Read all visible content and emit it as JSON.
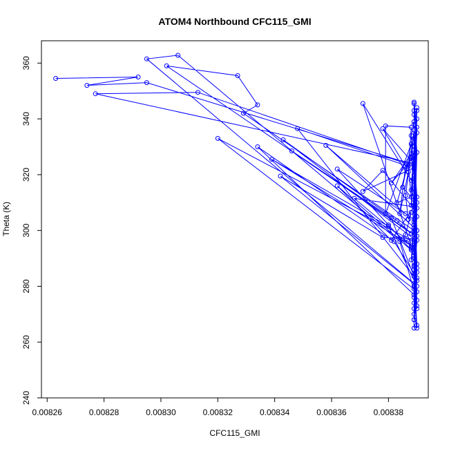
{
  "chart_data": {
    "type": "scatter",
    "title": "ATOM4 Northbound CFC115_GMI",
    "xlabel": "CFC115_GMI",
    "ylabel": "Theta (K)",
    "xlim": [
      0.008258,
      0.008394
    ],
    "ylim": [
      240,
      368
    ],
    "xticks": [
      0.00826,
      0.00828,
      0.0083,
      0.00832,
      0.00834,
      0.00836,
      0.00838
    ],
    "xtick_labels": [
      "0.00826",
      "0.00828",
      "0.00830",
      "0.00832",
      "0.00834",
      "0.00836",
      "0.00838"
    ],
    "yticks": [
      240,
      260,
      280,
      300,
      320,
      340,
      360
    ],
    "ytick_labels": [
      "240",
      "260",
      "280",
      "300",
      "320",
      "340",
      "360"
    ],
    "grid": false,
    "series": [
      {
        "color": "#0000ff",
        "connected": true,
        "marker": "open-circle",
        "points": [
          [
            0.008263,
            354.5
          ],
          [
            0.008292,
            355.0
          ],
          [
            0.008274,
            352.0
          ],
          [
            0.008295,
            353.0
          ],
          [
            0.008389,
            323.5
          ],
          [
            0.00839,
            310.0
          ],
          [
            0.008389,
            296.0
          ],
          [
            0.00839,
            282.0
          ],
          [
            0.008389,
            270.0
          ],
          [
            0.00839,
            265.0
          ],
          [
            0.008389,
            280.0
          ],
          [
            0.00839,
            300.0
          ],
          [
            0.008389,
            325.0
          ],
          [
            0.00839,
            344.0
          ],
          [
            0.008389,
            330.0
          ],
          [
            0.00839,
            312.0
          ],
          [
            0.008389,
            295.0
          ],
          [
            0.00839,
            278.0
          ],
          [
            0.008389,
            268.0
          ],
          [
            0.00839,
            288.0
          ],
          [
            0.008389,
            318.0
          ],
          [
            0.00839,
            340.0
          ],
          [
            0.008389,
            322.0
          ],
          [
            0.00839,
            305.0
          ],
          [
            0.008389,
            286.0
          ],
          [
            0.00839,
            273.0
          ],
          [
            0.008389,
            292.0
          ],
          [
            0.00839,
            328.0
          ],
          [
            0.008389,
            346.0
          ],
          [
            0.00839,
            335.0
          ],
          [
            0.008389,
            315.0
          ],
          [
            0.00839,
            298.0
          ],
          [
            0.008389,
            276.0
          ],
          [
            0.00839,
            266.0
          ],
          [
            0.008389,
            284.0
          ],
          [
            0.00839,
            308.0
          ],
          [
            0.008389,
            326.0
          ],
          [
            0.00839,
            343.0
          ],
          [
            0.008389,
            320.0
          ],
          [
            0.00839,
            300.0
          ],
          [
            0.008389,
            290.0
          ],
          [
            0.00839,
            272.0
          ],
          [
            0.008389,
            302.0
          ],
          [
            0.00839,
            337.0
          ],
          [
            0.008389,
            324.0
          ],
          [
            0.008277,
            349.0
          ],
          [
            0.008313,
            349.5
          ],
          [
            0.008389,
            323.0
          ],
          [
            0.00839,
            296.5
          ],
          [
            0.008389,
            281.0
          ],
          [
            0.008295,
            361.5
          ],
          [
            0.008306,
            362.8
          ],
          [
            0.008384,
            296.0
          ],
          [
            0.00839,
            275.0
          ],
          [
            0.008389,
            298.5
          ],
          [
            0.008302,
            359.0
          ],
          [
            0.008327,
            355.5
          ],
          [
            0.008334,
            345.0
          ],
          [
            0.008329,
            342.0
          ],
          [
            0.008389,
            300.0
          ],
          [
            0.00839,
            285.0
          ],
          [
            0.008389,
            279.0
          ],
          [
            0.00832,
            333.0
          ],
          [
            0.008389,
            296.0
          ],
          [
            0.00839,
            286.5
          ],
          [
            0.008389,
            277.0
          ],
          [
            0.008334,
            330.0
          ],
          [
            0.008382,
            296.0
          ],
          [
            0.00839,
            283.0
          ],
          [
            0.008389,
            294.0
          ],
          [
            0.008339,
            325.5
          ],
          [
            0.00838,
            301.5
          ],
          [
            0.00839,
            280.0
          ],
          [
            0.008342,
            319.5
          ],
          [
            0.008378,
            297.5
          ],
          [
            0.008389,
            297.0
          ],
          [
            0.008343,
            332.5
          ],
          [
            0.008383,
            303.5
          ],
          [
            0.008388,
            299.0
          ],
          [
            0.008346,
            328.5
          ],
          [
            0.008381,
            304.5
          ],
          [
            0.008389,
            283.5
          ],
          [
            0.008348,
            336.5
          ],
          [
            0.008387,
            323.0
          ],
          [
            0.008389,
            301.0
          ],
          [
            0.008358,
            330.5
          ],
          [
            0.008386,
            306.0
          ],
          [
            0.008389,
            304.0
          ],
          [
            0.008362,
            322.0
          ],
          [
            0.00838,
            302.0
          ],
          [
            0.008388,
            293.0
          ],
          [
            0.008362,
            316.0
          ],
          [
            0.008381,
            296.5
          ],
          [
            0.008389,
            308.5
          ],
          [
            0.008368,
            311.5
          ],
          [
            0.008388,
            294.5
          ],
          [
            0.008371,
            345.5
          ],
          [
            0.008388,
            318.0
          ],
          [
            0.008389,
            322.5
          ],
          [
            0.008371,
            314.0
          ],
          [
            0.008378,
            321.5
          ],
          [
            0.008388,
            309.0
          ],
          [
            0.008389,
            326.5
          ],
          [
            0.008381,
            317.0
          ],
          [
            0.008388,
            327.5
          ],
          [
            0.008383,
            310.0
          ],
          [
            0.008388,
            312.0
          ],
          [
            0.008385,
            315.5
          ],
          [
            0.008388,
            331.0
          ],
          [
            0.008379,
            306.0
          ],
          [
            0.008379,
            337.5
          ],
          [
            0.008388,
            337.0
          ],
          [
            0.008387,
            321.0
          ],
          [
            0.008384,
            306.0
          ],
          [
            0.008386,
            323.0
          ],
          [
            0.008378,
            336.5
          ],
          [
            0.008388,
            325.0
          ],
          [
            0.008389,
            336.0
          ],
          [
            0.008386,
            312.5
          ],
          [
            0.008387,
            304.0
          ],
          [
            0.008388,
            306.5
          ],
          [
            0.008386,
            298.5
          ],
          [
            0.008385,
            297.0
          ],
          [
            0.008387,
            296.0
          ],
          [
            0.008388,
            293.5
          ],
          [
            0.008389,
            291.0
          ],
          [
            0.008389,
            287.0
          ],
          [
            0.008388,
            289.5
          ],
          [
            0.008389,
            303.0
          ],
          [
            0.008388,
            334.0
          ],
          [
            0.008389,
            339.0
          ],
          [
            0.008389,
            341.5
          ],
          [
            0.008389,
            345.5
          ],
          [
            0.008389,
            343.0
          ],
          [
            0.008389,
            329.0
          ],
          [
            0.008388,
            314.5
          ],
          [
            0.008389,
            311.0
          ],
          [
            0.008389,
            299.5
          ],
          [
            0.008389,
            274.0
          ],
          [
            0.008389,
            268.0
          ],
          [
            0.008389,
            265.0
          ],
          [
            0.008389,
            272.0
          ],
          [
            0.008389,
            287.5
          ],
          [
            0.008389,
            293.0
          ],
          [
            0.008389,
            309.0
          ],
          [
            0.008389,
            317.5
          ],
          [
            0.008389,
            319.5
          ],
          [
            0.008389,
            327.0
          ],
          [
            0.008389,
            333.0
          ],
          [
            0.008389,
            338.0
          ]
        ]
      }
    ]
  }
}
